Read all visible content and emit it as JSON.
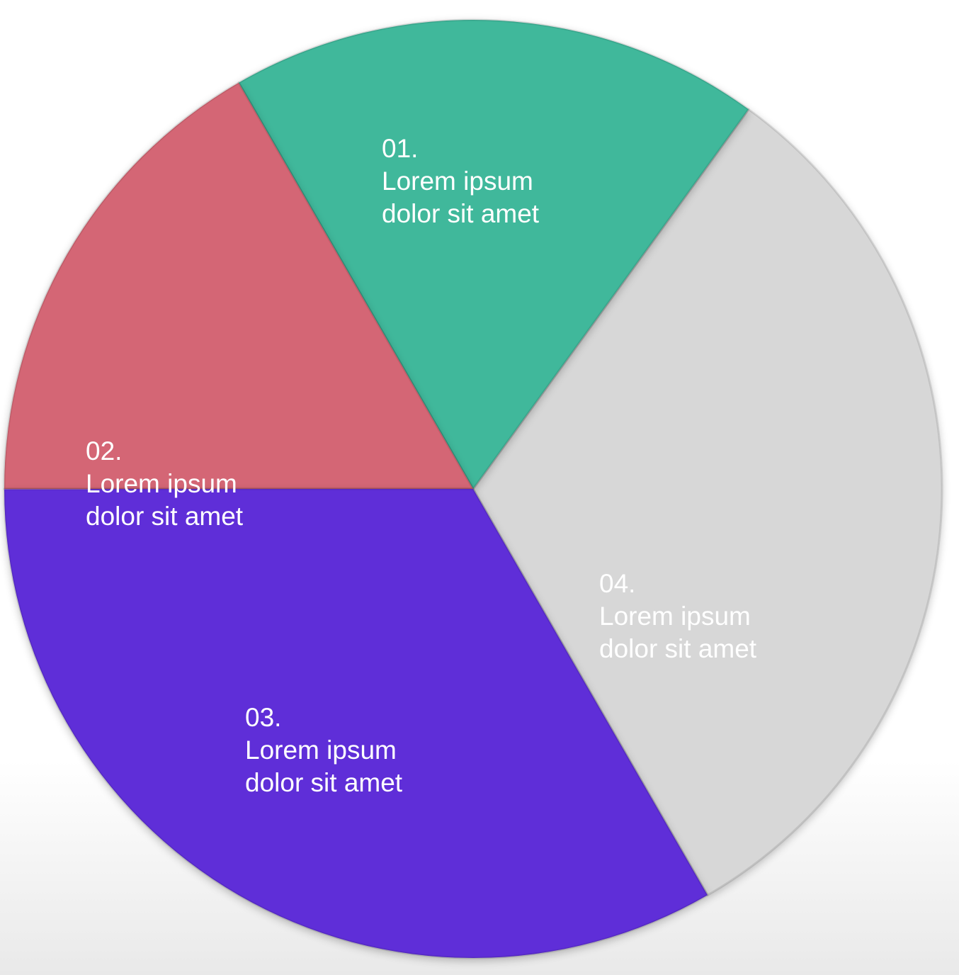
{
  "chart_data": {
    "type": "pie",
    "title": "",
    "slices": [
      {
        "number": "01.",
        "line1": "Lorem ipsum",
        "line2": "dolor sit amet",
        "value": 0.3167,
        "color": "#d7d7d7"
      },
      {
        "number": "02.",
        "line1": "Lorem ipsum",
        "line2": "dolor sit amet",
        "value": 0.1833,
        "color": "#3fb89b"
      },
      {
        "number": "03.",
        "line1": "Lorem ipsum",
        "line2": "dolor sit amet",
        "value": 0.1667,
        "color": "#d46674"
      },
      {
        "number": "04.",
        "line1": "Lorem ipsum",
        "line2": "dolor sit amet",
        "value": 0.3333,
        "color": "#5e2ed8"
      }
    ],
    "start_angle_deg": 300,
    "direction": "counterclockwise",
    "legend": "none"
  }
}
